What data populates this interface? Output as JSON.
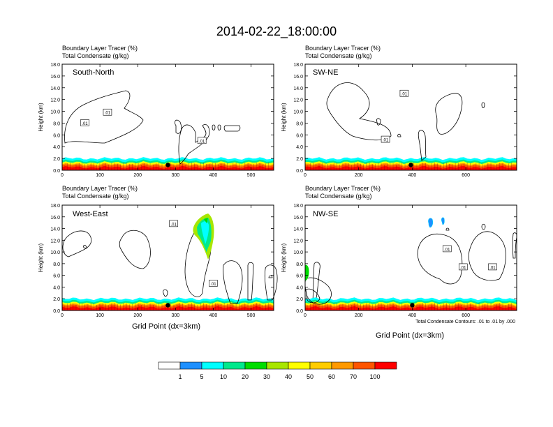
{
  "page_title": "2014-02-22_18:00:00",
  "panel_header_line1": "Boundary Layer Tracer   (%)",
  "panel_header_line2": "Total Condensate   (g/kg)",
  "ylabel": "Height (km)",
  "xlabel": "Grid Point (dx=3km)",
  "contour_note": "Total Condensate Contours: .01 to .01 by .000",
  "contour_label": ".01",
  "colorbar": {
    "colors": [
      "#ffffff",
      "#1e90ff",
      "#00ffff",
      "#00e98c",
      "#00dd00",
      "#a8e600",
      "#ffff00",
      "#ffcc00",
      "#ff9900",
      "#ff5500",
      "#ff0000"
    ],
    "labels": [
      "1",
      "5",
      "10",
      "20",
      "30",
      "40",
      "50",
      "60",
      "70",
      "100"
    ]
  },
  "chart_data": [
    {
      "type": "contour",
      "name": "South-North",
      "title": "South-North",
      "xlim": [
        0,
        560
      ],
      "ylim": [
        0,
        18
      ],
      "xticks": [
        0,
        100,
        200,
        300,
        400,
        500
      ],
      "yticks": [
        0,
        2,
        4,
        6,
        8,
        10,
        12,
        14,
        16,
        18
      ],
      "ytick_labels": [
        "0.0",
        "2.0",
        "4.0",
        "6.0",
        "8.0",
        "10.0",
        "12.0",
        "14.0",
        "16.0",
        "18.0"
      ],
      "site_x": 280,
      "contour_labels": [
        {
          "x": 60,
          "y": 8.0
        },
        {
          "x": 120,
          "y": 9.8
        },
        {
          "x": 370,
          "y": 5.0
        }
      ]
    },
    {
      "type": "contour",
      "name": "SW-NE",
      "title": "SW-NE",
      "xlim": [
        0,
        790
      ],
      "ylim": [
        0,
        18
      ],
      "xticks": [
        0,
        200,
        400,
        600
      ],
      "yticks": [
        0,
        2,
        4,
        6,
        8,
        10,
        12,
        14,
        16,
        18
      ],
      "ytick_labels": [
        "0.0",
        "2.0",
        "4.0",
        "6.0",
        "8.0",
        "10.0",
        "12.0",
        "14.0",
        "16.0",
        "18.0"
      ],
      "site_x": 395,
      "contour_labels": [
        {
          "x": 370,
          "y": 13.0
        },
        {
          "x": 300,
          "y": 5.2
        }
      ]
    },
    {
      "type": "contour",
      "name": "West-East",
      "title": "West-East",
      "xlim": [
        0,
        560
      ],
      "ylim": [
        0,
        18
      ],
      "xticks": [
        0,
        100,
        200,
        300,
        400,
        500
      ],
      "yticks": [
        0,
        2,
        4,
        6,
        8,
        10,
        12,
        14,
        16,
        18
      ],
      "ytick_labels": [
        "0.0",
        "2.0",
        "4.0",
        "6.0",
        "8.0",
        "10.0",
        "12.0",
        "14.0",
        "16.0",
        "18.0"
      ],
      "site_x": 280,
      "contour_labels": [
        {
          "x": 295,
          "y": 14.8
        },
        {
          "x": 400,
          "y": 4.6
        }
      ]
    },
    {
      "type": "contour",
      "name": "NW-SE",
      "title": "NW-SE",
      "xlim": [
        0,
        790
      ],
      "ylim": [
        0,
        18
      ],
      "xticks": [
        0,
        200,
        400,
        600
      ],
      "yticks": [
        0,
        2,
        4,
        6,
        8,
        10,
        12,
        14,
        16,
        18
      ],
      "ytick_labels": [
        "0.0",
        "2.0",
        "4.0",
        "6.0",
        "8.0",
        "10.0",
        "12.0",
        "14.0",
        "16.0",
        "18.0"
      ],
      "site_x": 400,
      "contour_labels": [
        {
          "x": 530,
          "y": 10.5
        },
        {
          "x": 590,
          "y": 7.4
        },
        {
          "x": 700,
          "y": 7.4
        }
      ]
    }
  ]
}
